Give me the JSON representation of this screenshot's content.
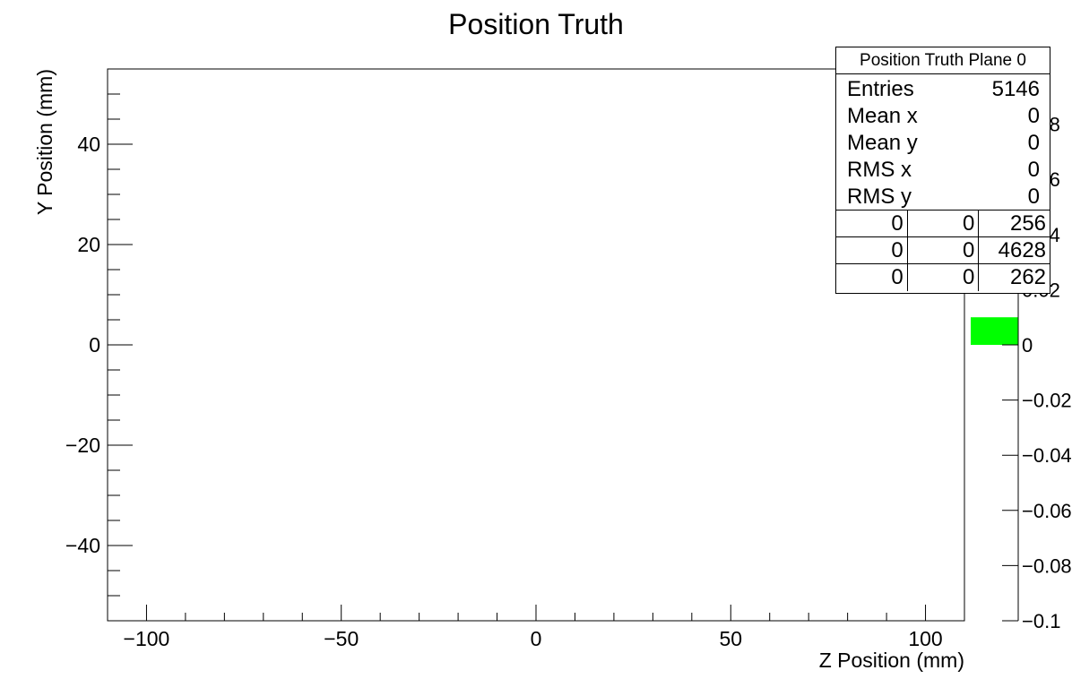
{
  "chart_data": {
    "type": "heatmap",
    "title": "Position Truth",
    "xlabel": "Z Position (mm)",
    "ylabel": "Y Position (mm)",
    "xlim": [
      -110,
      110
    ],
    "ylim": [
      -55,
      55
    ],
    "x_ticks": [
      -100,
      -50,
      0,
      50,
      100
    ],
    "x_tick_labels": [
      "−100",
      "−50",
      "0",
      "50",
      "100"
    ],
    "y_ticks": [
      -40,
      -20,
      0,
      20,
      40
    ],
    "y_tick_labels": [
      "−40",
      "−20",
      "0",
      "20",
      "40"
    ],
    "palette": {
      "zlim": [
        -0.1,
        0.1
      ],
      "ticks": [
        -0.1,
        -0.08,
        -0.06,
        -0.04,
        -0.02,
        0,
        0.02,
        0.04,
        0.06,
        0.08
      ],
      "tick_labels": [
        "−0.1",
        "−0.08",
        "−0.06",
        "−0.04",
        "−0.02",
        "0",
        "0.02",
        "0.04",
        "0.06",
        "0.08"
      ],
      "filled_range": [
        0,
        0.01
      ],
      "fill_color": "#00ff00"
    },
    "stats": {
      "title": "Position Truth Plane 0",
      "rows": [
        {
          "label": "Entries",
          "value": "5146"
        },
        {
          "label": "Mean x",
          "value": "0"
        },
        {
          "label": "Mean y",
          "value": "0"
        },
        {
          "label": "RMS x",
          "value": "0"
        },
        {
          "label": "RMS y",
          "value": "0"
        }
      ],
      "grid": [
        [
          "0",
          "0",
          "256"
        ],
        [
          "0",
          "0",
          "4628"
        ],
        [
          "0",
          "0",
          "262"
        ]
      ]
    },
    "grid": false
  }
}
